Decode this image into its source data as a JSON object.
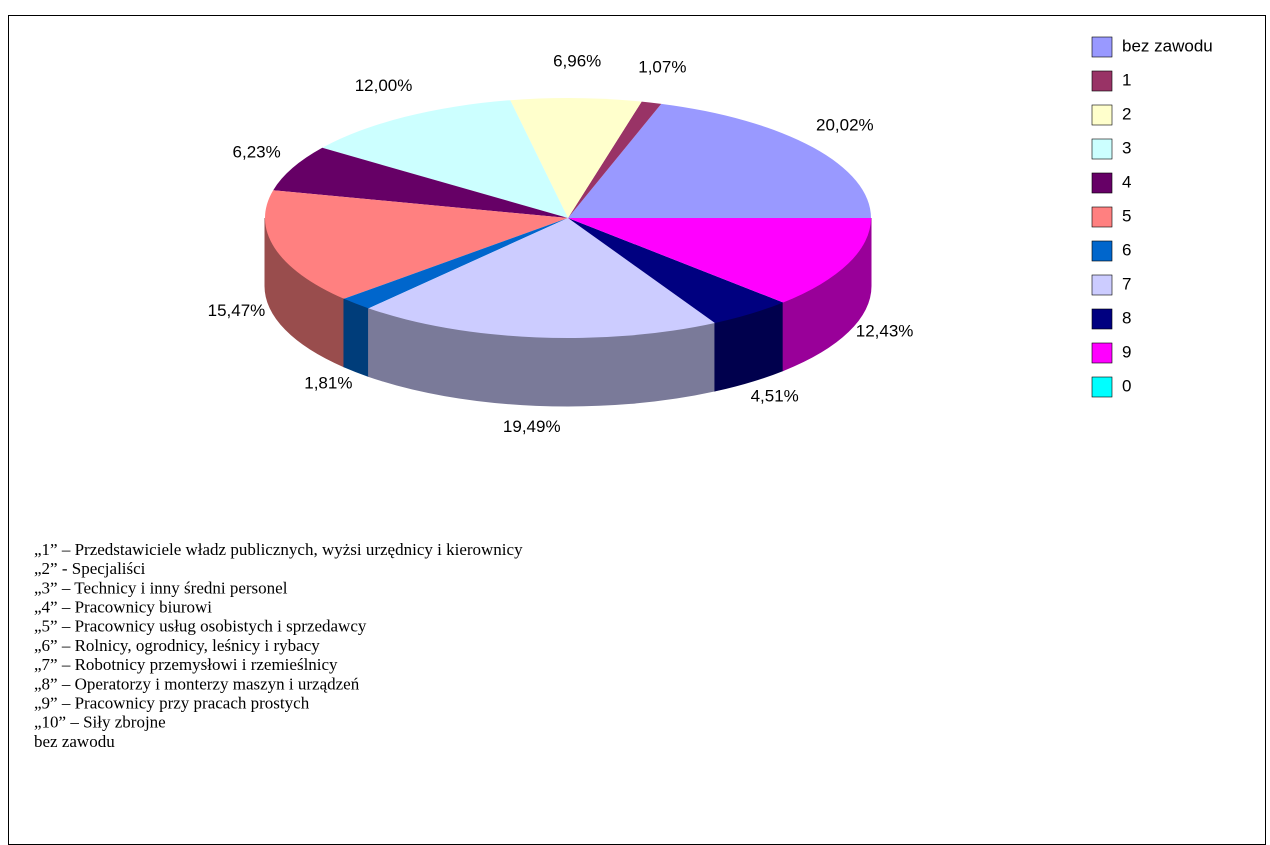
{
  "chart_data": {
    "type": "pie3d",
    "categories": [
      "bez zawodu",
      "1",
      "2",
      "3",
      "4",
      "5",
      "6",
      "7",
      "8",
      "9",
      "0"
    ],
    "values": [
      20.02,
      1.07,
      6.96,
      12.0,
      6.23,
      15.47,
      1.81,
      19.49,
      4.51,
      12.43,
      0
    ],
    "value_labels": [
      "20,02%",
      "1,07%",
      "6,96%",
      "12,00%",
      "6,23%",
      "15,47%",
      "1,81%",
      "19,49%",
      "4,51%",
      "12,43%",
      null
    ],
    "colors": [
      "#9999ff",
      "#993366",
      "#ffffcc",
      "#ccffff",
      "#660066",
      "#ff8080",
      "#0066cc",
      "#ccccff",
      "#000080",
      "#ff00ff",
      "#00ffff"
    ],
    "legend": "right"
  },
  "notes": [
    "„1” – Przedstawiciele władz publicznych, wyżsi urzędnicy i kierownicy",
    "„2” - Specjaliści",
    "„3” – Technicy i inny średni personel",
    "„4” – Pracownicy biurowi",
    "„5” – Pracownicy usług osobistych i sprzedawcy",
    "„6” – Rolnicy, ogrodnicy, leśnicy i rybacy",
    "„7” – Robotnicy przemysłowi i rzemieślnicy",
    "„8” – Operatorzy i monterzy maszyn i urządzeń",
    "„9” – Pracownicy przy pracach prostych",
    "„10” – Siły zbrojne",
    "bez zawodu"
  ]
}
